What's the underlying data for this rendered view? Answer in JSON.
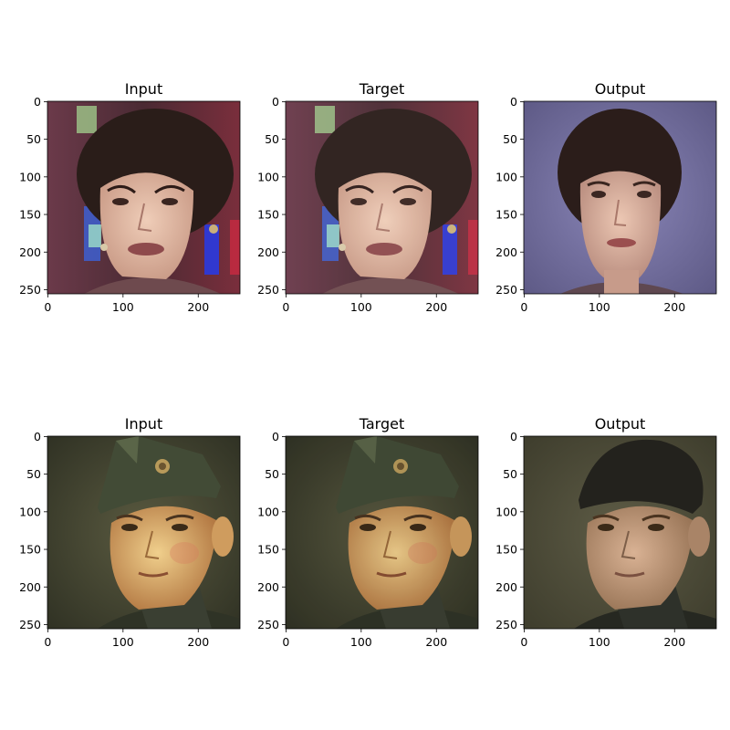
{
  "figure": {
    "panels": [
      {
        "title": "Input",
        "subject": "woman-face",
        "variant": "input"
      },
      {
        "title": "Target",
        "subject": "woman-face",
        "variant": "target"
      },
      {
        "title": "Output",
        "subject": "woman-face",
        "variant": "output"
      },
      {
        "title": "Input",
        "subject": "soldier-face",
        "variant": "input"
      },
      {
        "title": "Target",
        "subject": "soldier-face",
        "variant": "target"
      },
      {
        "title": "Output",
        "subject": "soldier-face",
        "variant": "output"
      }
    ],
    "x_ticks": [
      "0",
      "100",
      "200"
    ],
    "y_ticks": [
      "0",
      "50",
      "100",
      "150",
      "200",
      "250"
    ],
    "colors": {
      "woman_bg": "#5a2f3a",
      "woman_output_bg": "#6c6a98",
      "soldier_bg": "#3d3e2c",
      "soldier_output_bg": "#4a4936",
      "skin_light": "#e6bfa9",
      "skin_warm": "#d9a26a",
      "hair_dark": "#2a1d19",
      "cap_green": "#424b36"
    }
  }
}
